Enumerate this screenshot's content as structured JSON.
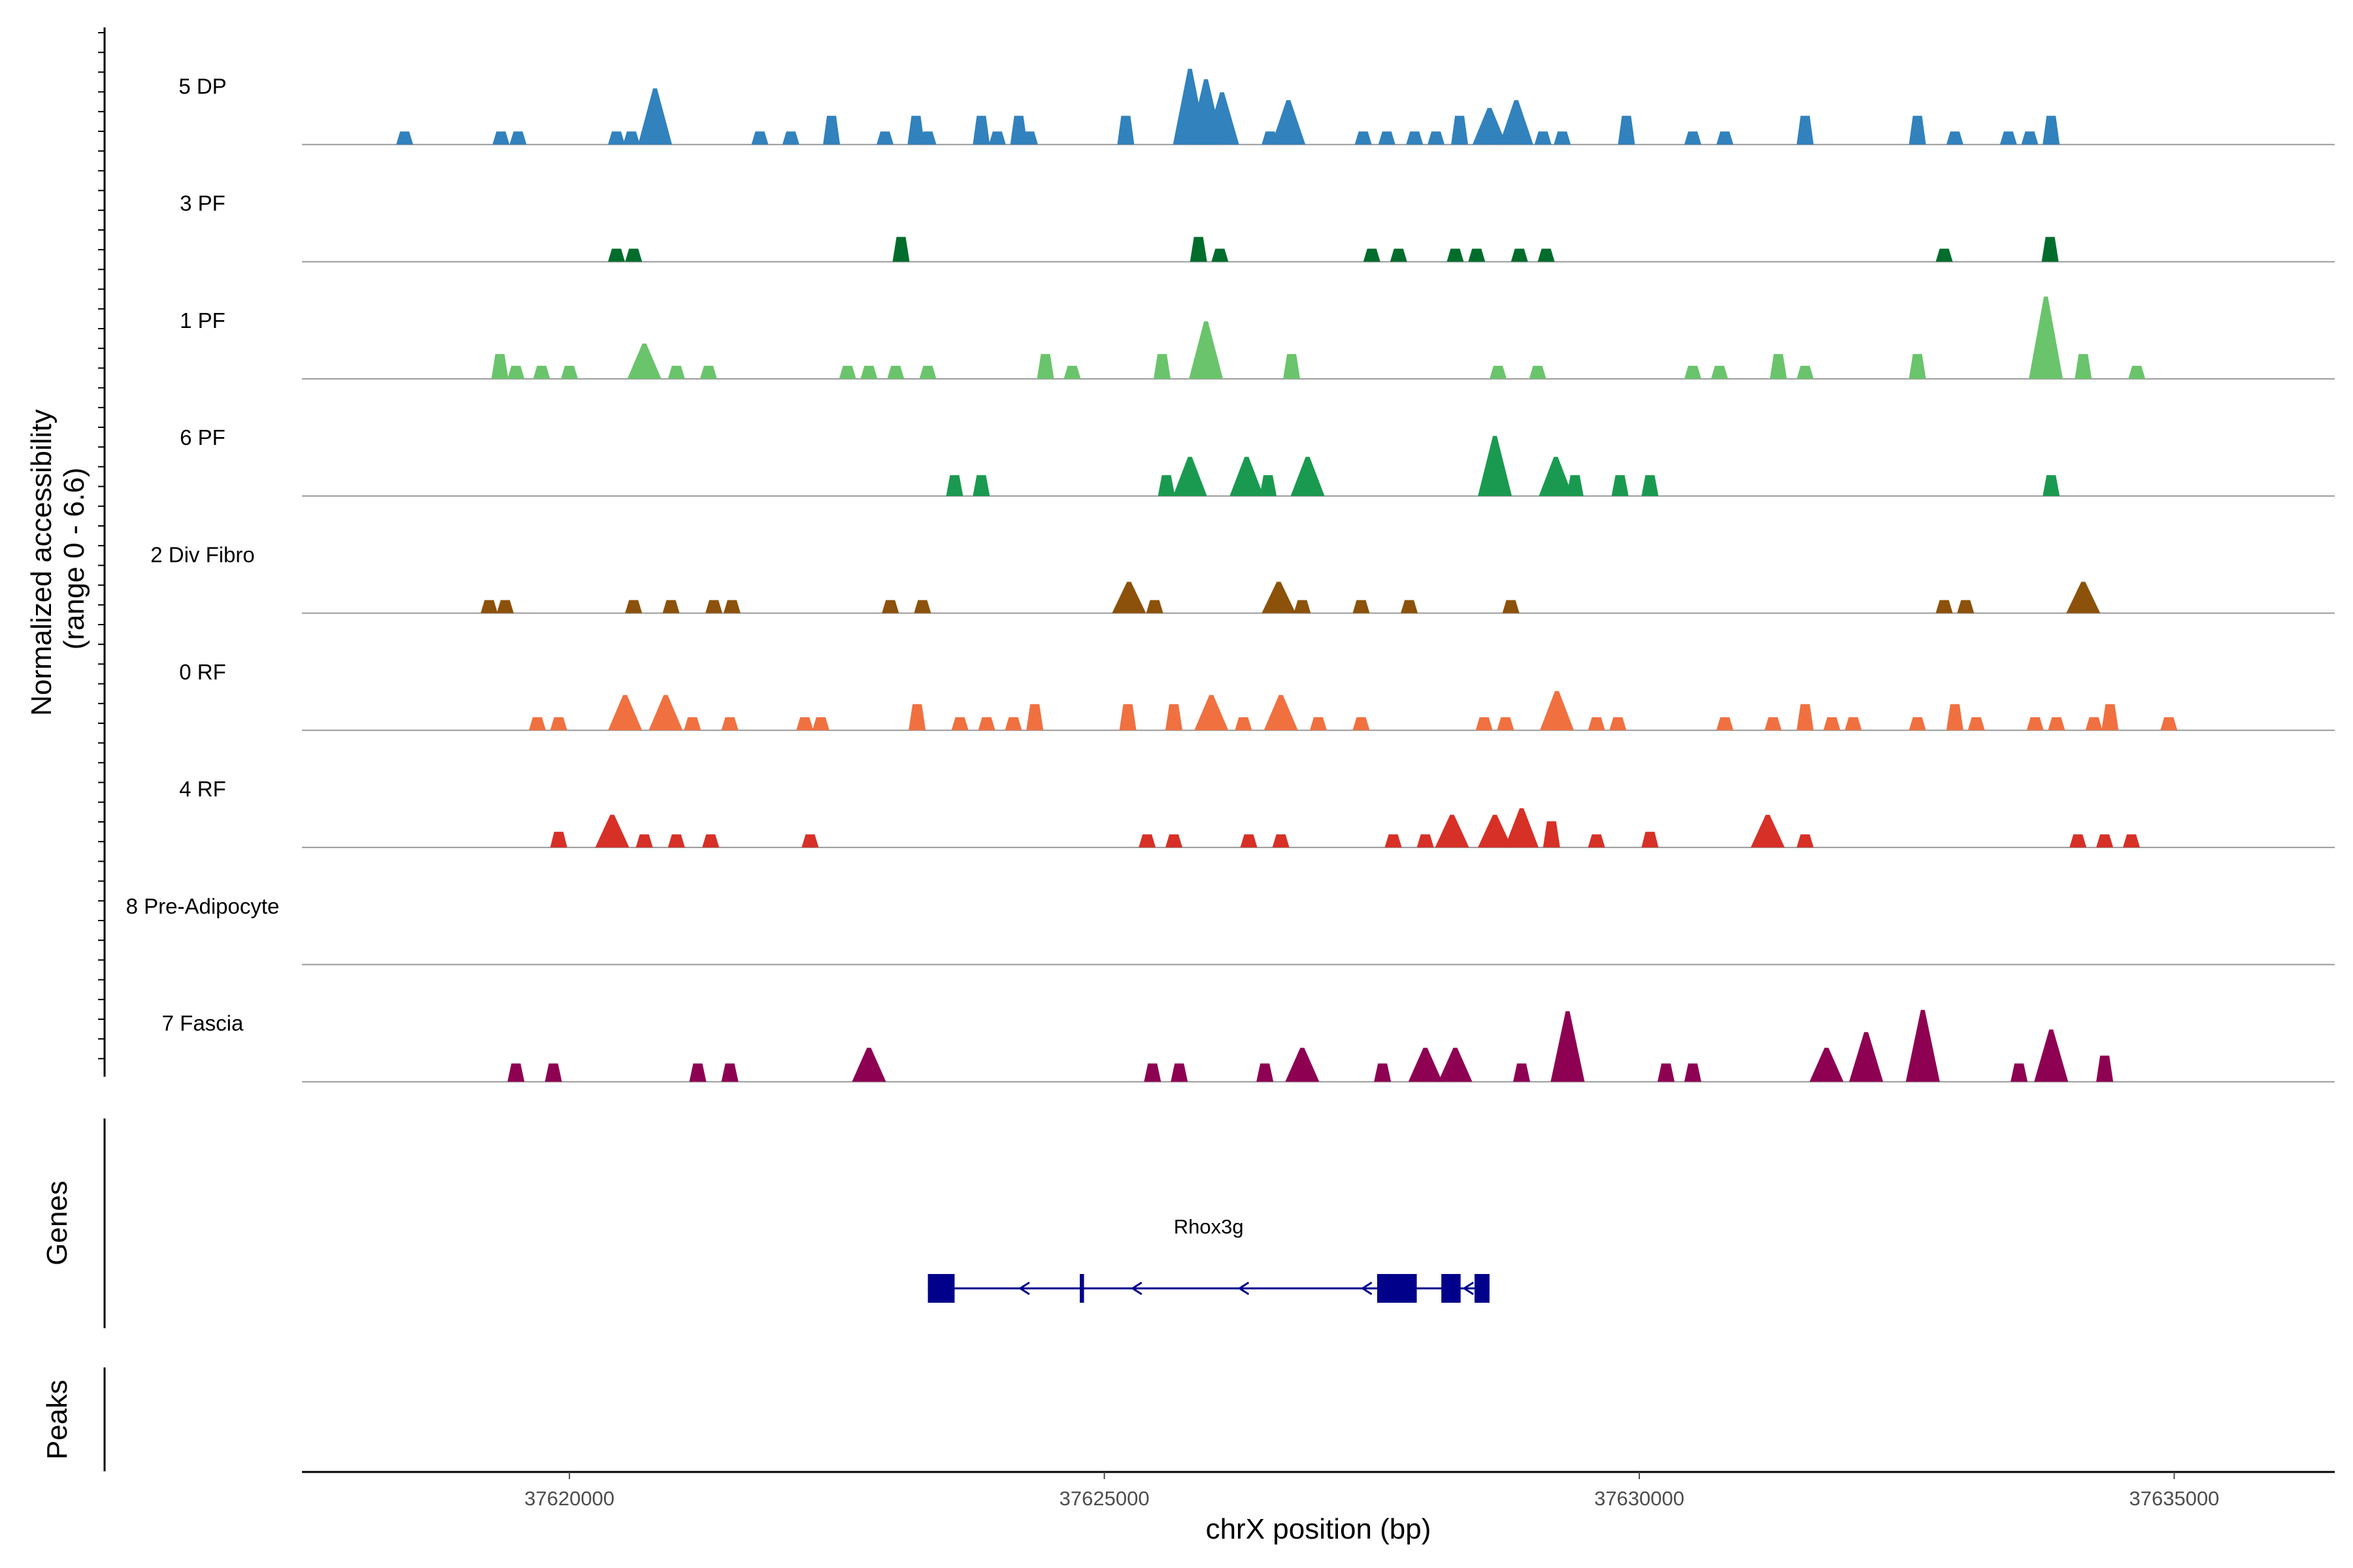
{
  "chart_data": {
    "type": "area",
    "title": "",
    "chromosome": "chrX",
    "xlabel": "chrX position (bp)",
    "ylabel": "Normalized accessibility\n(range 0 - 6.6)",
    "y_range": [
      0,
      6.6
    ],
    "xlim": [
      37617500,
      37636500
    ],
    "x_ticks": [
      37620000,
      37625000,
      37630000,
      37635000
    ],
    "x_tick_labels": [
      "37620000",
      "37625000",
      "37630000",
      "37635000"
    ],
    "colors": {
      "5 DP": "#3182bd",
      "3 PF": "#006d2c",
      "1 PF": "#6ac46c",
      "6 PF": "#1a9a50",
      "2 Div Fibro": "#8c510a",
      "0 RF": "#f07040",
      "4 RF": "#d73027",
      "8 Pre-Adipocyte": "#8e0152",
      "7 Fascia": "#8e0152"
    },
    "series": [
      {
        "name": "5 DP",
        "peaks": [
          [
            37618460,
            1.0
          ],
          [
            37619360,
            1.0
          ],
          [
            37619520,
            1.0
          ],
          [
            37620440,
            1.0
          ],
          [
            37620580,
            1.0
          ],
          [
            37620800,
            4.3
          ],
          [
            37621780,
            1.0
          ],
          [
            37622070,
            1.0
          ],
          [
            37622450,
            2.2
          ],
          [
            37622950,
            1.0
          ],
          [
            37623240,
            2.2
          ],
          [
            37623350,
            1.0
          ],
          [
            37623850,
            2.2
          ],
          [
            37624000,
            1.0
          ],
          [
            37624200,
            2.2
          ],
          [
            37624300,
            1.0
          ],
          [
            37625200,
            2.2
          ],
          [
            37625800,
            5.8
          ],
          [
            37625950,
            5.0
          ],
          [
            37626100,
            4.0
          ],
          [
            37626550,
            1.0
          ],
          [
            37626720,
            3.4
          ],
          [
            37627420,
            1.0
          ],
          [
            37627640,
            1.0
          ],
          [
            37627900,
            1.0
          ],
          [
            37628100,
            1.0
          ],
          [
            37628320,
            2.2
          ],
          [
            37628600,
            2.8
          ],
          [
            37628850,
            3.4
          ],
          [
            37629100,
            1.0
          ],
          [
            37629280,
            1.0
          ],
          [
            37629880,
            2.2
          ],
          [
            37630500,
            1.0
          ],
          [
            37630800,
            1.0
          ],
          [
            37631550,
            2.2
          ],
          [
            37632600,
            2.2
          ],
          [
            37632950,
            1.0
          ],
          [
            37633450,
            1.0
          ],
          [
            37633650,
            1.0
          ],
          [
            37633850,
            2.2
          ]
        ]
      },
      {
        "name": "3 PF",
        "peaks": [
          [
            37620440,
            1.0
          ],
          [
            37620600,
            1.0
          ],
          [
            37623100,
            1.9
          ],
          [
            37625880,
            1.9
          ],
          [
            37626080,
            1.0
          ],
          [
            37627500,
            1.0
          ],
          [
            37627750,
            1.0
          ],
          [
            37628280,
            1.0
          ],
          [
            37628480,
            1.0
          ],
          [
            37628880,
            1.0
          ],
          [
            37629130,
            1.0
          ],
          [
            37632850,
            1.0
          ],
          [
            37633840,
            1.9
          ]
        ]
      },
      {
        "name": "1 PF",
        "peaks": [
          [
            37619350,
            1.9
          ],
          [
            37619500,
            1.0
          ],
          [
            37619740,
            1.0
          ],
          [
            37620000,
            1.0
          ],
          [
            37620700,
            2.7
          ],
          [
            37621000,
            1.0
          ],
          [
            37621300,
            1.0
          ],
          [
            37622600,
            1.0
          ],
          [
            37622800,
            1.0
          ],
          [
            37623050,
            1.0
          ],
          [
            37623350,
            1.0
          ],
          [
            37624450,
            1.9
          ],
          [
            37624700,
            1.0
          ],
          [
            37625540,
            1.9
          ],
          [
            37625950,
            4.4
          ],
          [
            37626750,
            1.9
          ],
          [
            37628680,
            1.0
          ],
          [
            37629050,
            1.0
          ],
          [
            37630500,
            1.0
          ],
          [
            37630750,
            1.0
          ],
          [
            37631300,
            1.9
          ],
          [
            37631550,
            1.0
          ],
          [
            37632600,
            1.9
          ],
          [
            37633800,
            6.3
          ],
          [
            37634150,
            1.9
          ],
          [
            37634650,
            1.0
          ]
        ]
      },
      {
        "name": "6 PF",
        "peaks": [
          [
            37623600,
            1.6
          ],
          [
            37623850,
            1.6
          ],
          [
            37625580,
            1.6
          ],
          [
            37625800,
            3.0
          ],
          [
            37626330,
            3.0
          ],
          [
            37626530,
            1.6
          ],
          [
            37626900,
            3.0
          ],
          [
            37628650,
            4.6
          ],
          [
            37629220,
            3.0
          ],
          [
            37629400,
            1.6
          ],
          [
            37629820,
            1.6
          ],
          [
            37630100,
            1.6
          ],
          [
            37633850,
            1.6
          ]
        ]
      },
      {
        "name": "2 Div Fibro",
        "peaks": [
          [
            37619250,
            1.0
          ],
          [
            37619400,
            1.0
          ],
          [
            37620600,
            1.0
          ],
          [
            37620950,
            1.0
          ],
          [
            37621350,
            1.0
          ],
          [
            37621520,
            1.0
          ],
          [
            37623000,
            1.0
          ],
          [
            37623300,
            1.0
          ],
          [
            37625230,
            2.4
          ],
          [
            37625470,
            1.0
          ],
          [
            37626630,
            2.4
          ],
          [
            37626850,
            1.0
          ],
          [
            37627400,
            1.0
          ],
          [
            37627850,
            1.0
          ],
          [
            37628800,
            1.0
          ],
          [
            37632850,
            1.0
          ],
          [
            37633050,
            1.0
          ],
          [
            37634150,
            2.4
          ]
        ]
      },
      {
        "name": "0 RF",
        "peaks": [
          [
            37619700,
            1.0
          ],
          [
            37619900,
            1.0
          ],
          [
            37620520,
            2.7
          ],
          [
            37620900,
            2.7
          ],
          [
            37621150,
            1.0
          ],
          [
            37621500,
            1.0
          ],
          [
            37622200,
            1.0
          ],
          [
            37622350,
            1.0
          ],
          [
            37623250,
            2.0
          ],
          [
            37623650,
            1.0
          ],
          [
            37623900,
            1.0
          ],
          [
            37624150,
            1.0
          ],
          [
            37624350,
            2.0
          ],
          [
            37625220,
            2.0
          ],
          [
            37625650,
            2.0
          ],
          [
            37626000,
            2.7
          ],
          [
            37626300,
            1.0
          ],
          [
            37626650,
            2.7
          ],
          [
            37627000,
            1.0
          ],
          [
            37627400,
            1.0
          ],
          [
            37628550,
            1.0
          ],
          [
            37628750,
            1.0
          ],
          [
            37629230,
            3.0
          ],
          [
            37629600,
            1.0
          ],
          [
            37629800,
            1.0
          ],
          [
            37630800,
            1.0
          ],
          [
            37631250,
            1.0
          ],
          [
            37631550,
            2.0
          ],
          [
            37631800,
            1.0
          ],
          [
            37632000,
            1.0
          ],
          [
            37632600,
            1.0
          ],
          [
            37632950,
            2.0
          ],
          [
            37633150,
            1.0
          ],
          [
            37633700,
            1.0
          ],
          [
            37633900,
            1.0
          ],
          [
            37634250,
            1.0
          ],
          [
            37634400,
            2.0
          ],
          [
            37634950,
            1.0
          ]
        ]
      },
      {
        "name": "4 RF",
        "peaks": [
          [
            37619900,
            1.2
          ],
          [
            37620400,
            2.5
          ],
          [
            37620700,
            1.0
          ],
          [
            37621000,
            1.0
          ],
          [
            37621320,
            1.0
          ],
          [
            37622250,
            1.0
          ],
          [
            37625400,
            1.0
          ],
          [
            37625650,
            1.0
          ],
          [
            37626350,
            1.0
          ],
          [
            37626650,
            1.0
          ],
          [
            37627700,
            1.0
          ],
          [
            37628000,
            1.0
          ],
          [
            37628250,
            2.5
          ],
          [
            37628650,
            2.5
          ],
          [
            37628900,
            3.0
          ],
          [
            37629180,
            2.0
          ],
          [
            37629600,
            1.0
          ],
          [
            37630100,
            1.2
          ],
          [
            37631200,
            2.5
          ],
          [
            37631550,
            1.0
          ],
          [
            37634100,
            1.0
          ],
          [
            37634350,
            1.0
          ],
          [
            37634600,
            1.0
          ]
        ]
      },
      {
        "name": "8 Pre-Adipocyte",
        "peaks": []
      },
      {
        "name": "7 Fascia",
        "peaks": [
          [
            37619500,
            1.4
          ],
          [
            37619850,
            1.4
          ],
          [
            37621200,
            1.4
          ],
          [
            37621500,
            1.4
          ],
          [
            37622800,
            2.6
          ],
          [
            37625450,
            1.4
          ],
          [
            37625700,
            1.4
          ],
          [
            37626500,
            1.4
          ],
          [
            37626850,
            2.6
          ],
          [
            37627600,
            1.4
          ],
          [
            37628000,
            2.6
          ],
          [
            37628280,
            2.6
          ],
          [
            37628900,
            1.4
          ],
          [
            37629330,
            5.4
          ],
          [
            37630250,
            1.4
          ],
          [
            37630500,
            1.4
          ],
          [
            37631750,
            2.6
          ],
          [
            37632120,
            3.8
          ],
          [
            37632650,
            5.5
          ],
          [
            37633550,
            1.4
          ],
          [
            37633850,
            4.0
          ],
          [
            37634350,
            2.0
          ]
        ]
      }
    ],
    "gene_track": {
      "label": "Genes",
      "genes": [
        {
          "name": "Rhox3g",
          "strand": "-",
          "start": 37623350,
          "end": 37628600,
          "exons": [
            [
              37623350,
              37623600
            ],
            [
              37624770,
              37624810
            ],
            [
              37627550,
              37627920
            ],
            [
              37628150,
              37628330
            ],
            [
              37628460,
              37628600
            ]
          ]
        }
      ]
    },
    "peaks_track": {
      "label": "Peaks",
      "peaks": []
    }
  }
}
